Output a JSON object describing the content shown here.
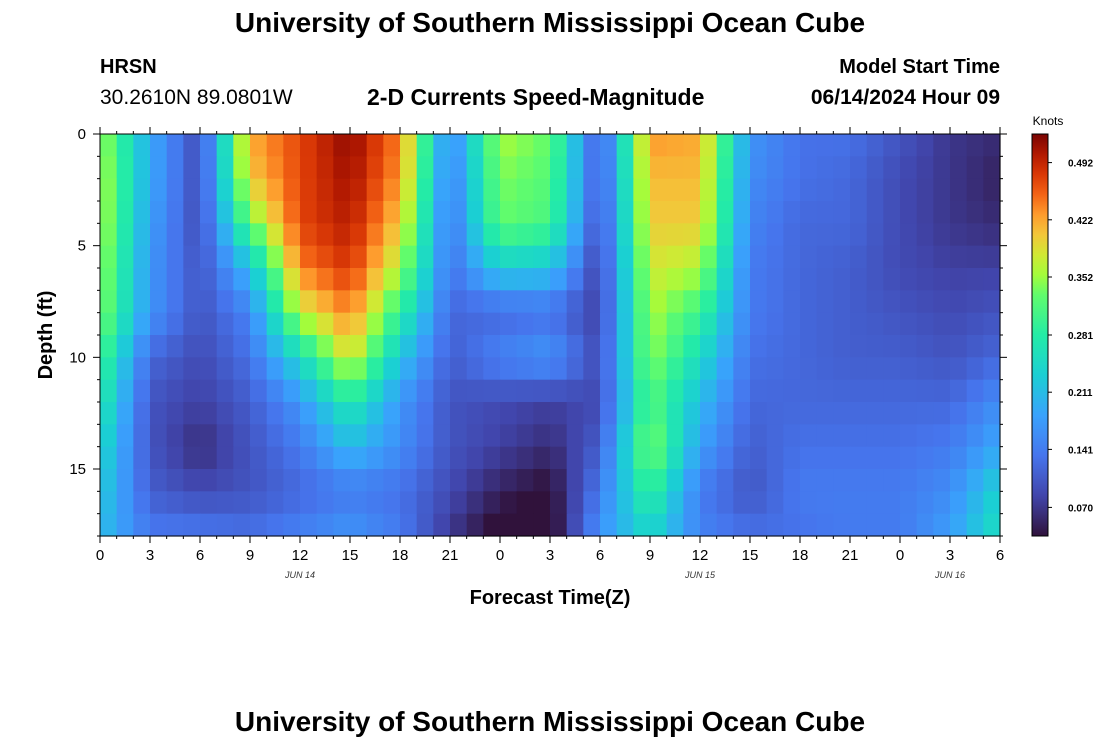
{
  "header": {
    "title": "University of Southern Mississippi Ocean Cube",
    "station": "HRSN",
    "coords": "30.2610N  89.0801W",
    "chart_title": "2-D Currents Speed-Magnitude",
    "model_label": "Model Start Time",
    "model_time": "06/14/2024 Hour 09"
  },
  "footer": {
    "title": "University of Southern Mississippi Ocean Cube"
  },
  "chart_data": {
    "type": "heatmap",
    "title": "2-D Currents Speed-Magnitude",
    "xlabel": "Forecast Time(Z)",
    "ylabel": "Depth (ft)",
    "x_ticks": [
      "0",
      "3",
      "6",
      "9",
      "12",
      "15",
      "18",
      "21",
      "0",
      "3",
      "6",
      "9",
      "12",
      "15",
      "18",
      "21",
      "0",
      "3",
      "6"
    ],
    "x_range_hours": [
      0,
      54
    ],
    "date_labels": [
      {
        "label": "JUN 14",
        "hour": 12
      },
      {
        "label": "JUN 15",
        "hour": 36
      },
      {
        "label": "JUN 16",
        "hour": 51
      }
    ],
    "y_ticks": [
      0,
      5,
      10,
      15
    ],
    "y_range": [
      0,
      18
    ],
    "y_inverted": true,
    "colorbar": {
      "unit": "Knots",
      "range": [
        0.035,
        0.527
      ],
      "ticks": [
        0.492,
        0.422,
        0.352,
        0.281,
        0.211,
        0.141,
        0.07
      ],
      "colormap": "turbo"
    },
    "grid": false,
    "hours": [
      0,
      3,
      6,
      9,
      12,
      15,
      18,
      21,
      24,
      27,
      30,
      33,
      36,
      39,
      42,
      45,
      48,
      51,
      54
    ],
    "depths_ft": [
      0,
      2,
      4,
      6,
      8,
      10,
      12,
      14,
      16,
      18
    ],
    "speed_knots": [
      [
        0.36,
        0.19,
        0.09,
        0.42,
        0.47,
        0.52,
        0.44,
        0.15,
        0.36,
        0.33,
        0.1,
        0.43,
        0.42,
        0.17,
        0.13,
        0.13,
        0.1,
        0.07,
        0.06
      ],
      [
        0.37,
        0.19,
        0.09,
        0.4,
        0.47,
        0.51,
        0.43,
        0.14,
        0.34,
        0.32,
        0.1,
        0.41,
        0.41,
        0.16,
        0.13,
        0.12,
        0.09,
        0.07,
        0.05
      ],
      [
        0.37,
        0.18,
        0.09,
        0.33,
        0.47,
        0.5,
        0.4,
        0.13,
        0.33,
        0.31,
        0.09,
        0.4,
        0.4,
        0.15,
        0.12,
        0.12,
        0.09,
        0.07,
        0.06
      ],
      [
        0.36,
        0.17,
        0.1,
        0.21,
        0.44,
        0.48,
        0.36,
        0.13,
        0.23,
        0.22,
        0.08,
        0.38,
        0.36,
        0.14,
        0.12,
        0.11,
        0.09,
        0.08,
        0.08
      ],
      [
        0.35,
        0.17,
        0.1,
        0.15,
        0.37,
        0.44,
        0.29,
        0.12,
        0.12,
        0.13,
        0.08,
        0.36,
        0.3,
        0.14,
        0.12,
        0.11,
        0.1,
        0.09,
        0.1
      ],
      [
        0.31,
        0.12,
        0.09,
        0.13,
        0.25,
        0.39,
        0.22,
        0.11,
        0.15,
        0.17,
        0.09,
        0.35,
        0.25,
        0.13,
        0.12,
        0.11,
        0.11,
        0.1,
        0.12
      ],
      [
        0.28,
        0.1,
        0.08,
        0.11,
        0.17,
        0.28,
        0.17,
        0.1,
        0.09,
        0.08,
        0.09,
        0.32,
        0.21,
        0.12,
        0.12,
        0.12,
        0.12,
        0.12,
        0.16
      ],
      [
        0.25,
        0.1,
        0.06,
        0.1,
        0.14,
        0.21,
        0.16,
        0.1,
        0.08,
        0.06,
        0.11,
        0.35,
        0.18,
        0.11,
        0.13,
        0.13,
        0.13,
        0.14,
        0.19
      ],
      [
        0.23,
        0.11,
        0.09,
        0.1,
        0.12,
        0.14,
        0.13,
        0.09,
        0.05,
        0.03,
        0.14,
        0.3,
        0.14,
        0.1,
        0.14,
        0.14,
        0.14,
        0.16,
        0.24
      ],
      [
        0.21,
        0.14,
        0.14,
        0.13,
        0.15,
        0.17,
        0.14,
        0.07,
        0.02,
        0.02,
        0.17,
        0.24,
        0.15,
        0.13,
        0.13,
        0.14,
        0.14,
        0.18,
        0.26
      ]
    ]
  }
}
